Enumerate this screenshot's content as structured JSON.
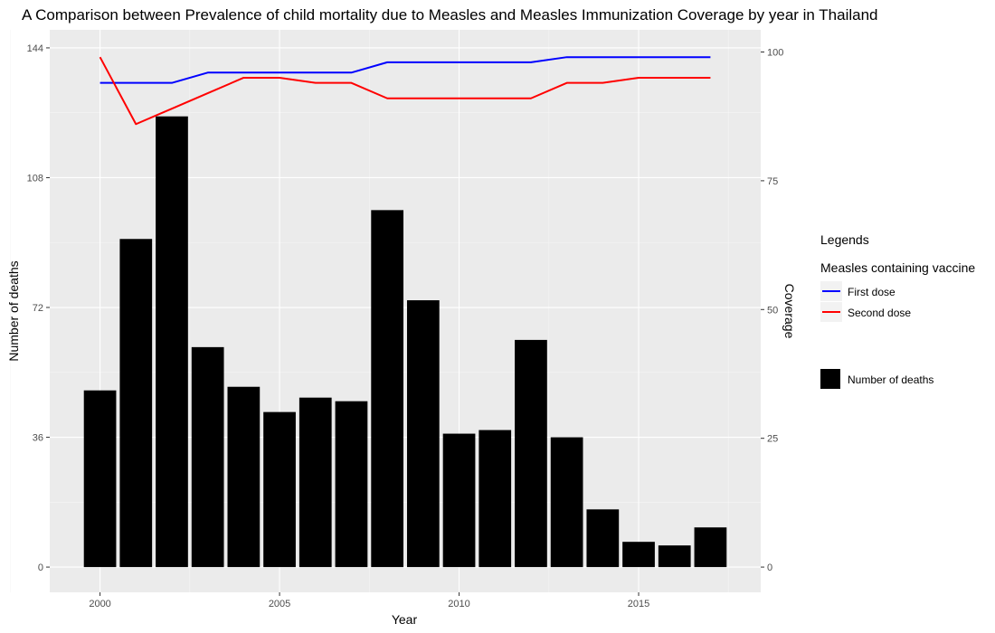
{
  "chart_data": {
    "type": "bar",
    "title": "A Comparison between Prevalence of child mortality due to Measles and Measles Immunization Coverage by year in Thailand",
    "xlabel": "Year",
    "ylabel": "Number of deaths",
    "y2label": "Coverage",
    "x": [
      2000,
      2001,
      2002,
      2003,
      2004,
      2005,
      2006,
      2007,
      2008,
      2009,
      2010,
      2011,
      2012,
      2013,
      2014,
      2015,
      2016,
      2017
    ],
    "xlim": [
      1998.6,
      2018.4
    ],
    "x_ticks": [
      2000,
      2005,
      2010,
      2015
    ],
    "ylim": [
      -7,
      149
    ],
    "y_ticks": [
      0,
      36,
      72,
      108,
      144
    ],
    "y2lim": [
      -4.9,
      104.3
    ],
    "y2_ticks": [
      0,
      25,
      50,
      75,
      100
    ],
    "grid": true,
    "bars": {
      "name": "Number of deaths",
      "color": "#000000",
      "values": [
        49,
        91,
        125,
        61,
        50,
        43,
        47,
        46,
        99,
        74,
        37,
        38,
        63,
        36,
        16,
        7,
        6,
        11
      ]
    },
    "series": [
      {
        "name": "First dose",
        "color": "#0000ff",
        "values": [
          94,
          94,
          94,
          96,
          96,
          96,
          96,
          96,
          98,
          98,
          98,
          98,
          98,
          99,
          99,
          99,
          99,
          99
        ]
      },
      {
        "name": "Second dose",
        "color": "#ff0000",
        "values": [
          99,
          86,
          89,
          92,
          95,
          95,
          94,
          94,
          91,
          91,
          91,
          91,
          91,
          94,
          94,
          95,
          95,
          95
        ]
      }
    ],
    "legend": {
      "position": "right",
      "title": "Legends",
      "line_group_title": "Measles containing vaccine"
    }
  }
}
